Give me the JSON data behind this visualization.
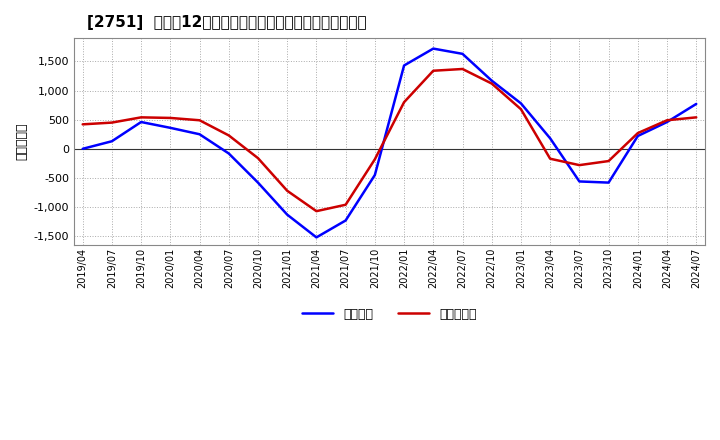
{
  "title": "[2751]  利益だ12か月移動合計の対前年同期増減額の推移",
  "ylabel": "（百万円）",
  "ylim": [
    -1650,
    1900
  ],
  "yticks": [
    -1500,
    -1000,
    -500,
    0,
    500,
    1000,
    1500
  ],
  "background_color": "#ffffff",
  "plot_bg_color": "#ffffff",
  "grid_color": "#aaaaaa",
  "legend_labels": [
    "経常利益",
    "当期純利益"
  ],
  "legend_colors": [
    "#0000ff",
    "#cc0000"
  ],
  "x_labels": [
    "2019/04",
    "2019/07",
    "2019/10",
    "2020/01",
    "2020/04",
    "2020/07",
    "2020/10",
    "2021/01",
    "2021/04",
    "2021/07",
    "2021/10",
    "2022/01",
    "2022/04",
    "2022/07",
    "2022/10",
    "2023/01",
    "2023/04",
    "2023/07",
    "2023/10",
    "2024/01",
    "2024/04",
    "2024/07"
  ],
  "operating_profit": [
    0,
    130,
    460,
    360,
    250,
    -80,
    -580,
    -1130,
    -1520,
    -1230,
    -450,
    1430,
    1720,
    1630,
    1170,
    780,
    180,
    -560,
    -580,
    220,
    460,
    770
  ],
  "net_profit": [
    420,
    450,
    540,
    530,
    490,
    230,
    -160,
    -720,
    -1070,
    -960,
    -180,
    800,
    1340,
    1370,
    1120,
    680,
    -170,
    -280,
    -210,
    270,
    490,
    540
  ],
  "line_width": 1.8
}
